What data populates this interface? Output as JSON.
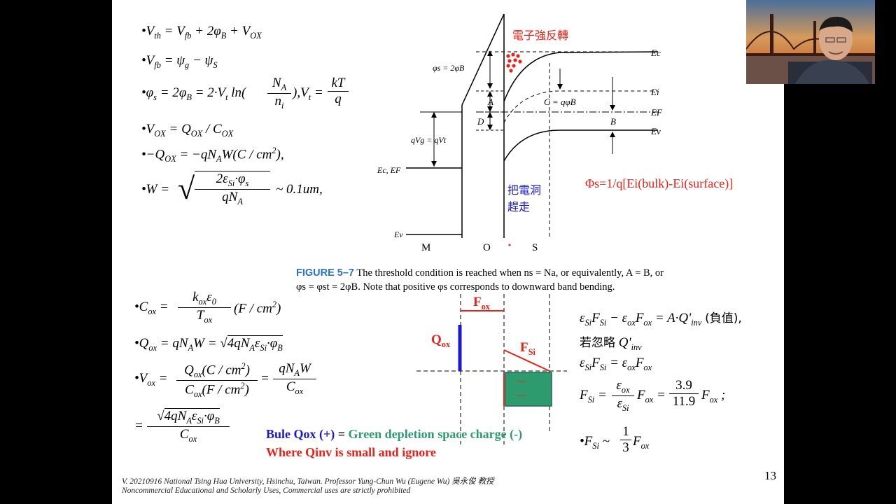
{
  "equations_left_top": [
    "•V_th = V_fb + 2φ_B + V_OX",
    "•V_fb = ψ_g − ψ_S",
    "•φ_s = 2φ_B = 2·V_t ln(N_A / n_i), V_t = kT / q",
    "•V_OX = Q_OX / C_OX",
    "•−Q_OX = −qN_A W (C / cm²),",
    "•W = √(2ε_Si·φ_s / qN_A) ~ 0.1um,"
  ],
  "equations_left_bottom": [
    "•C_ox = k_ox ε_0 / T_ox (F / cm²)",
    "•Q_ox = qN_A W = √(4qN_A ε_Si·φ_B)",
    "•V_ox = Q_ox(C / cm²) / C_ox(F / cm²) = qN_A W / C_ox",
    "= √(4qN_A ε_Si·φ_B) / C_ox"
  ],
  "equations_right": [
    "ε_Si F_Si − ε_ox F_ox = A·Q'_inv (負值),",
    "若忽略 Q'_inv",
    "ε_Si F_Si = ε_ox F_ox",
    "F_Si = (ε_ox / ε_Si) F_ox = (3.9 / 11.9) F_ox ;",
    "•F_Si ~ (1/3) F_ox"
  ],
  "band_diagram": {
    "label_strong_inversion": "電子強反轉",
    "label_expel_holes_1": "把電洞",
    "label_expel_holes_2": "趕走",
    "label_phi_s_definition": "Φs=1/q[Ei(bulk)-Ei(surface)]",
    "phi_s_label": "φs = 2φB",
    "qVg_label": "qVg = qVt",
    "C_label": "C = qφB",
    "A": "A",
    "B": "B",
    "D": "D",
    "Ec": "Ec",
    "Ei": "Ei",
    "EF": "EF",
    "Ev": "Ev",
    "Ec_EF_metal": "Ec, EF",
    "Ev_metal": "Ev",
    "M": "M",
    "O": "O",
    "S": "S"
  },
  "caption": {
    "figure": "FIGURE 5–7",
    "line1": "The threshold condition is reached when ns = Na, or equivalently, A = B, or",
    "line2": "φs = φst = 2φB. Note that positive φs corresponds to downward band bending."
  },
  "charge_diagram": {
    "F_ox": "Fox",
    "F_Si": "FSi",
    "Q_ox": "Qox",
    "depletion_dashes": "-----",
    "colors": {
      "blue": "#1a1acc",
      "red": "#e8221a",
      "green": "#2e9b6e",
      "teal": "#1f8a6a"
    }
  },
  "summary": {
    "line1_blue": "Bule Qox (+) ",
    "line1_eq": "= ",
    "line1_green": "Green depletion space charge (-)",
    "line2_red": "Where Qinv is small and ignore"
  },
  "page_number": "13",
  "footer": {
    "line1": "V. 20210916 National Tsing Hua University, Hsinchu, Taiwan. Professor Yung-Chun Wu (Eugene Wu) 吳永俊 教授",
    "line2": "Noncommercial Educational and Scholarly Uses, Commercial uses are strictly prohibited"
  }
}
